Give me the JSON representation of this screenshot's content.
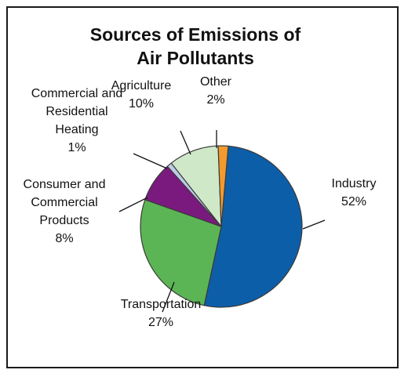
{
  "chart_data": {
    "type": "pie",
    "title_lines": [
      "Sources of Emissions of",
      "Air Pollutants"
    ],
    "slices": [
      {
        "name_lines": [
          "Industry"
        ],
        "value": 52,
        "value_label": "52%",
        "color": "#0d5ea8"
      },
      {
        "name_lines": [
          "Transportation"
        ],
        "value": 27,
        "value_label": "27%",
        "color": "#5cb555"
      },
      {
        "name_lines": [
          "Consumer and",
          "Commercial",
          "Products"
        ],
        "value": 8,
        "value_label": "8%",
        "color": "#7a1a7e"
      },
      {
        "name_lines": [
          "Commercial and",
          "Residential",
          "Heating"
        ],
        "value": 1,
        "value_label": "1%",
        "color": "#bfcbe6"
      },
      {
        "name_lines": [
          "Agriculture"
        ],
        "value": 10,
        "value_label": "10%",
        "color": "#cfe8c8"
      },
      {
        "name_lines": [
          "Other"
        ],
        "value": 2,
        "value_label": "2%",
        "color": "#f29a2e"
      }
    ],
    "legend": "none"
  }
}
